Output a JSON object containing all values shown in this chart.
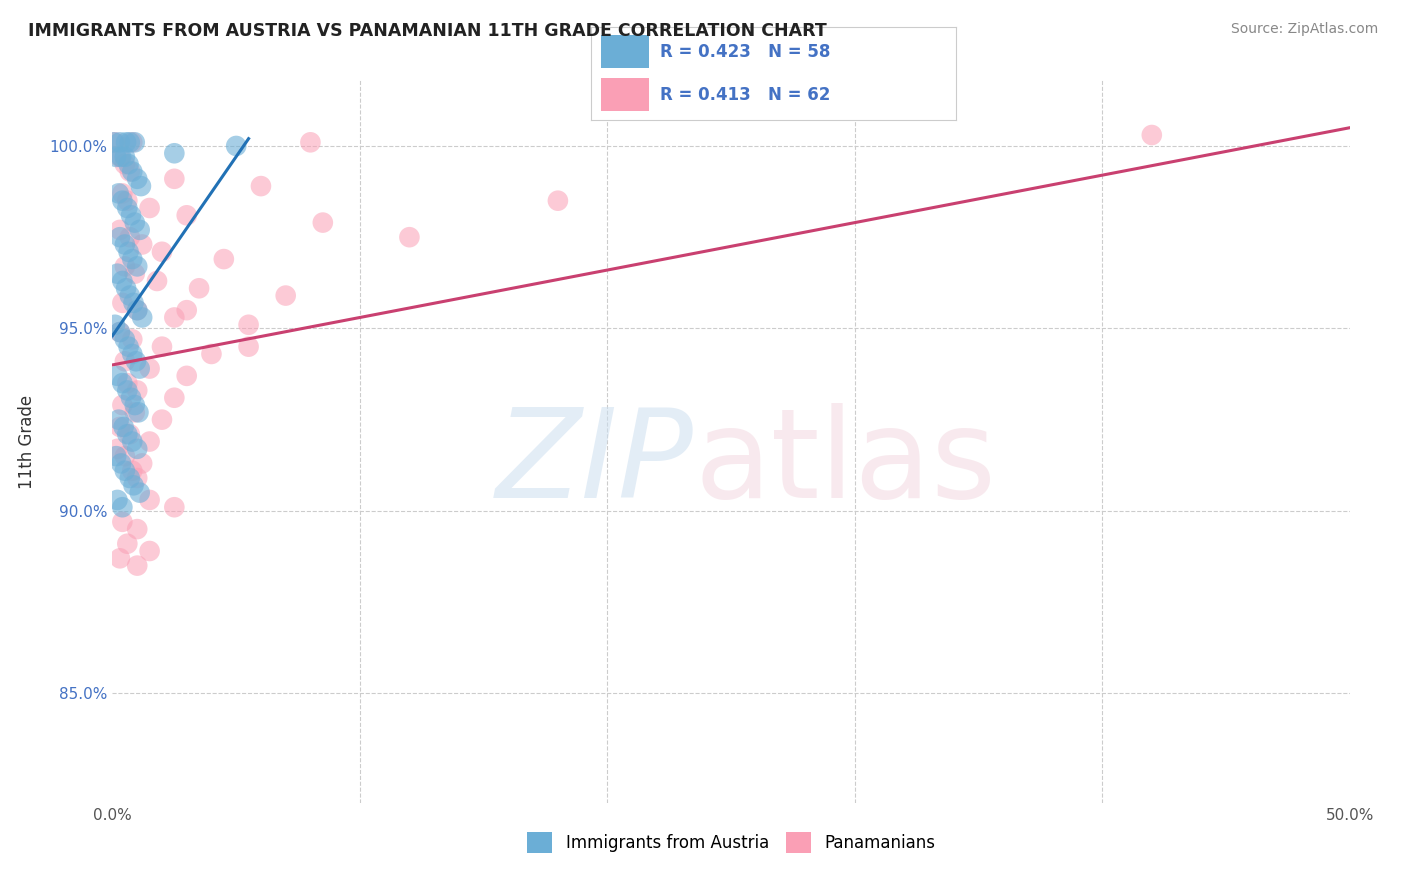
{
  "title": "IMMIGRANTS FROM AUSTRIA VS PANAMANIAN 11TH GRADE CORRELATION CHART",
  "source": "Source: ZipAtlas.com",
  "ylabel": "11th Grade",
  "x_min": 0.0,
  "x_max": 50.0,
  "y_min": 82.0,
  "y_max": 101.8,
  "y_ticks": [
    85.0,
    90.0,
    95.0,
    100.0
  ],
  "y_tick_labels": [
    "85.0%",
    "90.0%",
    "95.0%",
    "100.0%"
  ],
  "blue_color": "#6baed6",
  "pink_color": "#fa9fb5",
  "blue_line_color": "#2171b5",
  "pink_line_color": "#c94070",
  "blue_line": {
    "x0": 0.0,
    "y0": 94.8,
    "x1": 5.5,
    "y1": 100.2
  },
  "pink_line": {
    "x0": 0.0,
    "y0": 94.0,
    "x1": 50.0,
    "y1": 100.5
  },
  "blue_scatter": [
    [
      0.05,
      100.1
    ],
    [
      0.3,
      100.1
    ],
    [
      0.55,
      100.1
    ],
    [
      0.7,
      100.1
    ],
    [
      0.9,
      100.1
    ],
    [
      0.15,
      99.7
    ],
    [
      0.35,
      99.7
    ],
    [
      0.5,
      99.7
    ],
    [
      0.65,
      99.5
    ],
    [
      0.8,
      99.3
    ],
    [
      1.0,
      99.1
    ],
    [
      1.15,
      98.9
    ],
    [
      0.25,
      98.7
    ],
    [
      0.4,
      98.5
    ],
    [
      0.6,
      98.3
    ],
    [
      0.75,
      98.1
    ],
    [
      0.9,
      97.9
    ],
    [
      1.1,
      97.7
    ],
    [
      0.3,
      97.5
    ],
    [
      0.5,
      97.3
    ],
    [
      0.65,
      97.1
    ],
    [
      0.8,
      96.9
    ],
    [
      1.0,
      96.7
    ],
    [
      0.2,
      96.5
    ],
    [
      0.4,
      96.3
    ],
    [
      0.55,
      96.1
    ],
    [
      0.7,
      95.9
    ],
    [
      0.85,
      95.7
    ],
    [
      1.0,
      95.5
    ],
    [
      1.2,
      95.3
    ],
    [
      0.1,
      95.1
    ],
    [
      0.3,
      94.9
    ],
    [
      0.5,
      94.7
    ],
    [
      0.65,
      94.5
    ],
    [
      0.8,
      94.3
    ],
    [
      0.95,
      94.1
    ],
    [
      1.1,
      93.9
    ],
    [
      0.2,
      93.7
    ],
    [
      0.4,
      93.5
    ],
    [
      0.6,
      93.3
    ],
    [
      0.75,
      93.1
    ],
    [
      0.9,
      92.9
    ],
    [
      1.05,
      92.7
    ],
    [
      0.25,
      92.5
    ],
    [
      0.45,
      92.3
    ],
    [
      0.6,
      92.1
    ],
    [
      0.8,
      91.9
    ],
    [
      1.0,
      91.7
    ],
    [
      0.15,
      91.5
    ],
    [
      0.35,
      91.3
    ],
    [
      0.5,
      91.1
    ],
    [
      0.7,
      90.9
    ],
    [
      0.85,
      90.7
    ],
    [
      1.1,
      90.5
    ],
    [
      0.2,
      90.3
    ],
    [
      0.4,
      90.1
    ],
    [
      2.5,
      99.8
    ],
    [
      5.0,
      100.0
    ]
  ],
  "pink_scatter": [
    [
      0.1,
      100.1
    ],
    [
      0.8,
      100.1
    ],
    [
      8.0,
      100.1
    ],
    [
      42.0,
      100.3
    ],
    [
      0.3,
      99.7
    ],
    [
      0.5,
      99.5
    ],
    [
      0.7,
      99.3
    ],
    [
      2.5,
      99.1
    ],
    [
      6.0,
      98.9
    ],
    [
      0.4,
      98.7
    ],
    [
      0.6,
      98.5
    ],
    [
      1.5,
      98.3
    ],
    [
      3.0,
      98.1
    ],
    [
      8.5,
      97.9
    ],
    [
      0.3,
      97.7
    ],
    [
      0.7,
      97.5
    ],
    [
      1.2,
      97.3
    ],
    [
      2.0,
      97.1
    ],
    [
      4.5,
      96.9
    ],
    [
      0.5,
      96.7
    ],
    [
      0.9,
      96.5
    ],
    [
      1.8,
      96.3
    ],
    [
      3.5,
      96.1
    ],
    [
      7.0,
      95.9
    ],
    [
      0.4,
      95.7
    ],
    [
      1.0,
      95.5
    ],
    [
      2.5,
      95.3
    ],
    [
      5.5,
      95.1
    ],
    [
      0.3,
      94.9
    ],
    [
      0.8,
      94.7
    ],
    [
      2.0,
      94.5
    ],
    [
      4.0,
      94.3
    ],
    [
      0.5,
      94.1
    ],
    [
      1.5,
      93.9
    ],
    [
      3.0,
      93.7
    ],
    [
      0.6,
      93.5
    ],
    [
      1.0,
      93.3
    ],
    [
      2.5,
      93.1
    ],
    [
      0.4,
      92.9
    ],
    [
      0.9,
      92.7
    ],
    [
      2.0,
      92.5
    ],
    [
      0.3,
      92.3
    ],
    [
      0.7,
      92.1
    ],
    [
      1.5,
      91.9
    ],
    [
      0.2,
      91.7
    ],
    [
      0.5,
      91.5
    ],
    [
      1.2,
      91.3
    ],
    [
      0.8,
      91.1
    ],
    [
      1.0,
      90.9
    ],
    [
      1.5,
      90.3
    ],
    [
      2.5,
      90.1
    ],
    [
      0.4,
      89.7
    ],
    [
      1.0,
      89.5
    ],
    [
      0.6,
      89.1
    ],
    [
      1.5,
      88.9
    ],
    [
      0.3,
      88.7
    ],
    [
      1.0,
      88.5
    ],
    [
      3.0,
      95.5
    ],
    [
      5.5,
      94.5
    ],
    [
      12.0,
      97.5
    ],
    [
      18.0,
      98.5
    ]
  ]
}
